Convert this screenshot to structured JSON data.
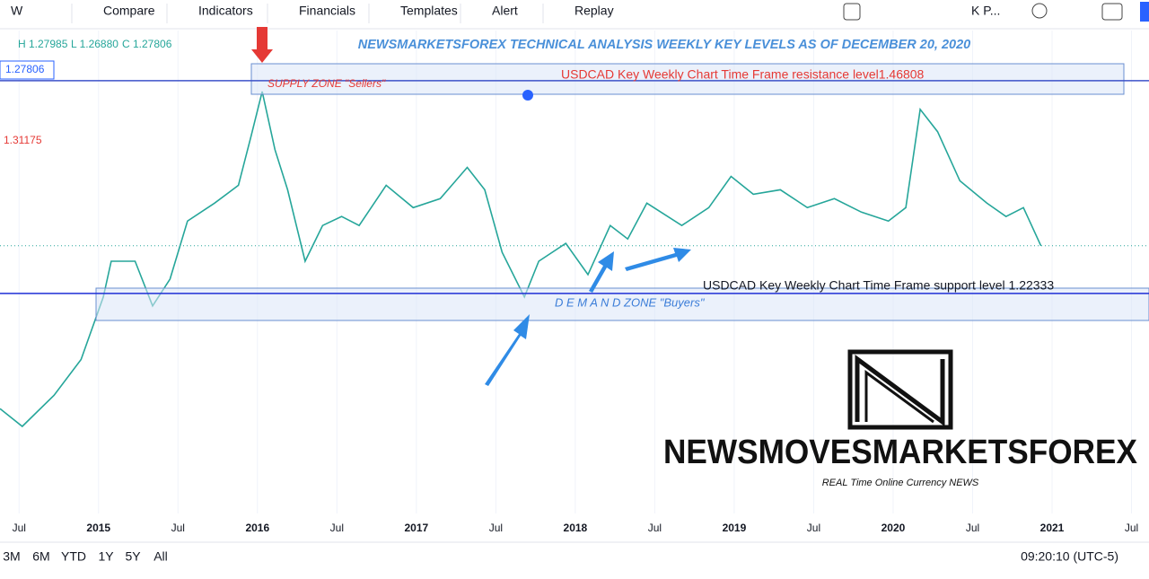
{
  "toolbar": {
    "interval": "W",
    "items": [
      "Compare",
      "Indicators",
      "Financials",
      "Templates",
      "Alert",
      "Replay"
    ],
    "symbol": "K P..."
  },
  "legend": {
    "high": "H 1.27985",
    "low": "L 1.26880",
    "close": "C 1.27806"
  },
  "price_labels": [
    "1.27806",
    "1.31175"
  ],
  "chart_data": {
    "type": "line",
    "title": "NEWSMARKETSFOREX TECHNICAL ANALYSIS WEEKLY KEY LEVELS AS OF DECEMBER  20, 2020",
    "x": [
      2014.38,
      2014.52,
      2014.72,
      2014.89,
      2015.03,
      2015.08,
      2015.23,
      2015.34,
      2015.45,
      2015.56,
      2015.73,
      2015.88,
      2015.96,
      2016.03,
      2016.11,
      2016.19,
      2016.3,
      2016.41,
      2016.53,
      2016.64,
      2016.81,
      2016.98,
      2017.15,
      2017.32,
      2017.43,
      2017.54,
      2017.68,
      2017.77,
      2017.94,
      2018.08,
      2018.22,
      2018.33,
      2018.45,
      2018.67,
      2018.84,
      2018.98,
      2019.12,
      2019.29,
      2019.46,
      2019.63,
      2019.8,
      2019.97,
      2020.08,
      2020.17,
      2020.28,
      2020.42,
      2020.59,
      2020.71,
      2020.82,
      2020.93
    ],
    "values": [
      1.0907,
      1.0702,
      1.1061,
      1.1472,
      1.2192,
      1.2603,
      1.2603,
      1.2089,
      1.2398,
      1.3066,
      1.3272,
      1.3477,
      1.4043,
      1.4556,
      1.3888,
      1.3426,
      1.2603,
      1.3015,
      1.3118,
      1.3015,
      1.3477,
      1.322,
      1.3323,
      1.3683,
      1.3426,
      1.2706,
      1.2192,
      1.2603,
      1.2809,
      1.2449,
      1.3015,
      1.286,
      1.3272,
      1.3015,
      1.322,
      1.358,
      1.3374,
      1.3426,
      1.322,
      1.3323,
      1.3169,
      1.3066,
      1.322,
      1.4351,
      1.4094,
      1.3529,
      1.3272,
      1.3118,
      1.322,
      1.2781
    ],
    "color": "#26a69a",
    "xlim": [
      2014.38,
      2021.61
    ],
    "ylim": [
      0.97,
      1.53
    ],
    "xticks": [
      {
        "value": 2014.5,
        "label": "Jul"
      },
      2015,
      {
        "value": 2015.5,
        "label": "Jul"
      },
      2016,
      {
        "value": 2016.5,
        "label": "Jul"
      },
      2017,
      {
        "value": 2017.5,
        "label": "Jul"
      },
      2018,
      {
        "value": 2018.5,
        "label": "Jul"
      },
      2019,
      {
        "value": 2019.5,
        "label": "Jul"
      },
      2020,
      {
        "value": 2020.5,
        "label": "Jul"
      },
      2021,
      {
        "value": 2021.5,
        "label": "Jul"
      }
    ],
    "levels": [
      {
        "value": 1.46808,
        "color": "#3d52c9"
      },
      {
        "value": 1.22333,
        "color": "#1f2fd6"
      }
    ],
    "annotations": {
      "supply": "SUPPLY ZONE  \"Sellers\"",
      "resistance": "USDCAD Key Weekly Chart Time Frame resistance level1.46808",
      "support": "USDCAD Key Weekly Chart Time Frame support level 1.22333",
      "demand": "D  E  M  A  N  D    ZONE \"Buyers\""
    }
  },
  "logo": {
    "name": "NEWSMOVESMARKETSFOREX",
    "tagline": "REAL Time Online Currency NEWS"
  },
  "bottom_bar": {
    "ranges": [
      "3M",
      "6M",
      "YTD",
      "1Y",
      "5Y",
      "All"
    ],
    "time": "09:20:10 (UTC-5)"
  }
}
